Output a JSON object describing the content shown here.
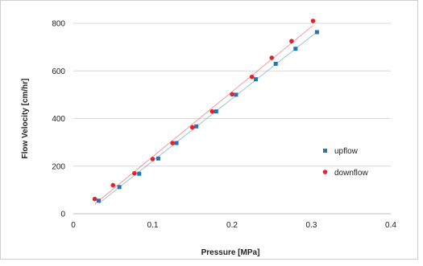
{
  "chart_data": {
    "type": "scatter",
    "xlabel": "Pressure [MPa]",
    "ylabel": "Flow Velocity [cm/hr]",
    "xlim": [
      0,
      0.4
    ],
    "ylim": [
      0,
      800
    ],
    "xticks": [
      "0",
      "0.1",
      "0.2",
      "0.3",
      "0.4"
    ],
    "yticks": [
      "0",
      "200",
      "400",
      "600",
      "800"
    ],
    "grid": "horizontal",
    "legend_position": "right",
    "series": [
      {
        "name": "upflow",
        "color": "#1f77b4",
        "marker": "square",
        "trendline": true,
        "x": [
          0.032,
          0.058,
          0.083,
          0.107,
          0.13,
          0.155,
          0.18,
          0.205,
          0.23,
          0.255,
          0.28,
          0.307
        ],
        "y": [
          55,
          112,
          168,
          232,
          297,
          367,
          430,
          500,
          565,
          630,
          693,
          763
        ]
      },
      {
        "name": "downflow",
        "color": "#e8202a",
        "marker": "circle",
        "trendline": true,
        "x": [
          0.027,
          0.05,
          0.077,
          0.1,
          0.125,
          0.15,
          0.175,
          0.2,
          0.225,
          0.25,
          0.275,
          0.302
        ],
        "y": [
          62,
          120,
          170,
          230,
          297,
          363,
          430,
          502,
          575,
          655,
          725,
          810
        ]
      }
    ]
  }
}
